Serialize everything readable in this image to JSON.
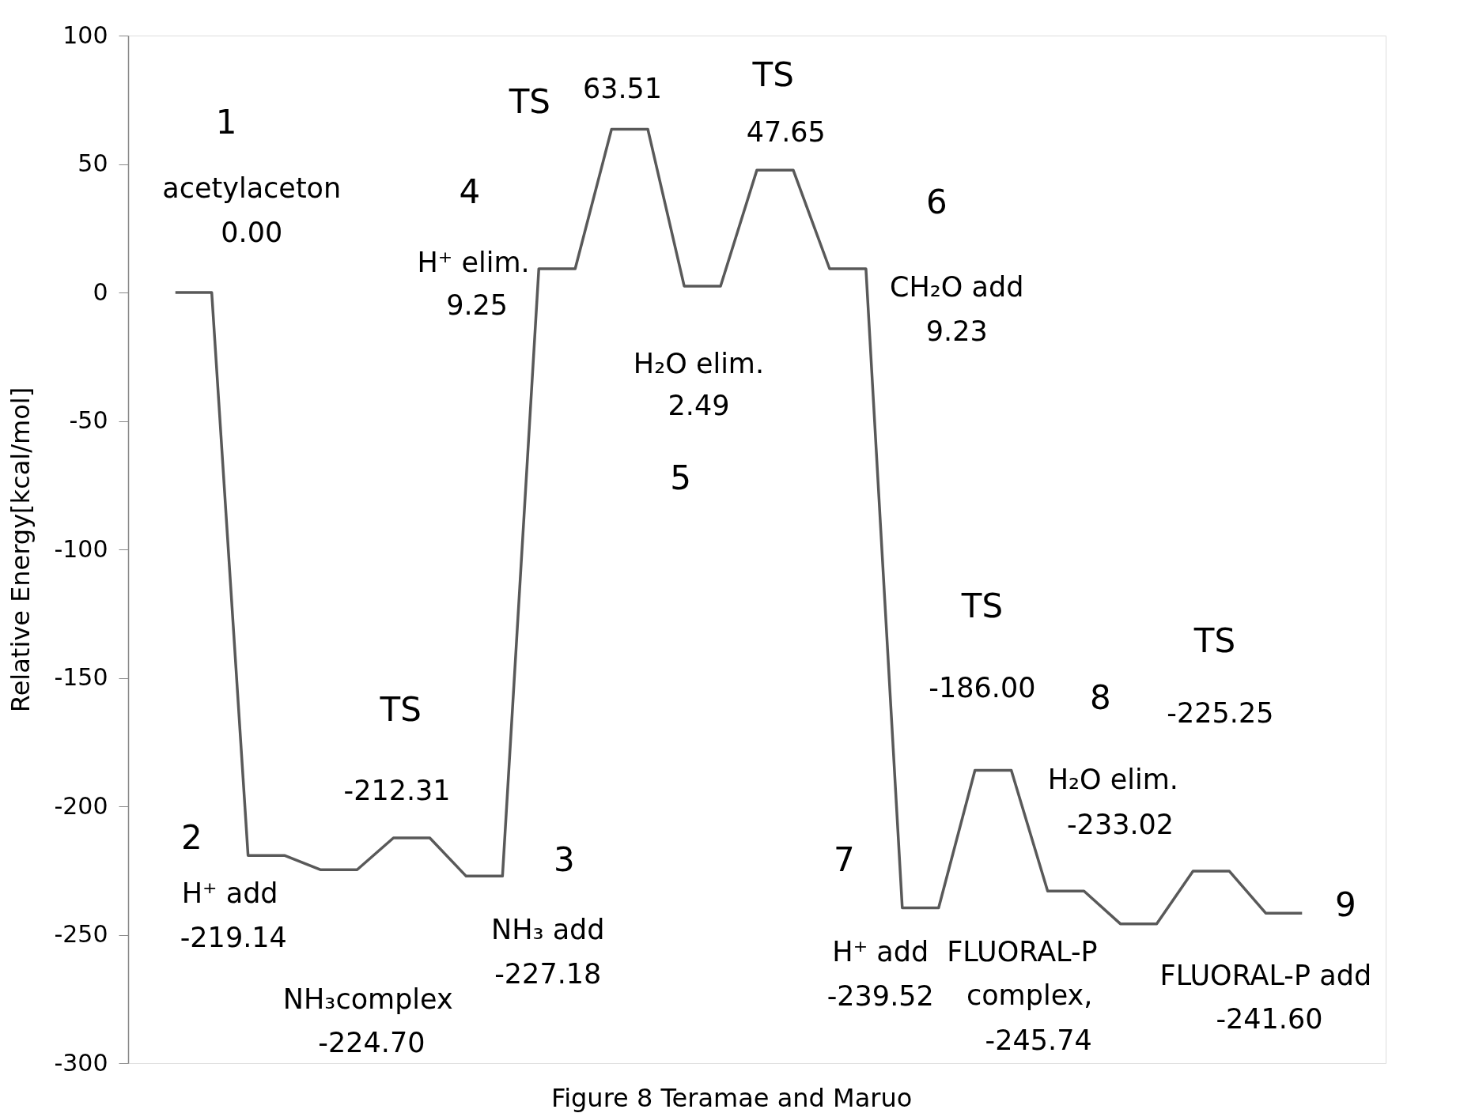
{
  "chart_data": {
    "type": "line",
    "ylabel": "Relative Energy[kcal/mol]",
    "categories": [
      null,
      null,
      null,
      null,
      null,
      null,
      null,
      null,
      null,
      null,
      null,
      null,
      null,
      null,
      null,
      null,
      null,
      null,
      null,
      null,
      null,
      null,
      null,
      null,
      null,
      null,
      null,
      null,
      null,
      null,
      null,
      null
    ],
    "series": [
      {
        "color": "#595959",
        "values": [
          0.0,
          0.0,
          -219.14,
          -219.14,
          -224.7,
          -224.7,
          -212.31,
          -212.31,
          -227.18,
          -227.18,
          9.25,
          9.25,
          63.51,
          63.51,
          2.49,
          2.49,
          47.65,
          47.65,
          9.23,
          9.23,
          -239.52,
          -239.52,
          -186.0,
          -186.0,
          -233.02,
          -233.02,
          -245.74,
          -245.74,
          -225.25,
          -225.25,
          -241.6,
          -241.6
        ]
      }
    ],
    "ylim": [
      -300,
      100
    ],
    "yticks": [
      -300,
      -250,
      -200,
      -150,
      -100,
      -50,
      0,
      50,
      100
    ],
    "tick_labels": "y",
    "grid": false,
    "marker": "none",
    "line_style": "solid",
    "annotations": [
      "1",
      "acetylaceton",
      "0.00",
      "2",
      "H⁺ add",
      "-219.14",
      "NH₃complex",
      "-224.70",
      "TS",
      "-212.31",
      "3",
      "NH₃ add",
      "-227.18",
      "4",
      "H⁺ elim.",
      "9.25",
      "TS",
      "63.51",
      "H₂O elim.",
      "2.49",
      "5",
      "TS",
      "47.65",
      "6",
      "CH₂O add",
      "9.23",
      "7",
      "H⁺ add",
      "-239.52",
      "TS",
      "-186.00",
      "8",
      "H₂O elim.",
      "-233.02",
      "FLUORAL-P",
      "complex,",
      "-245.74",
      "TS",
      "-225.25",
      "9",
      "FLUORAL-P add",
      "-241.60",
      "Figure 8 Teramae and Maruo"
    ]
  }
}
